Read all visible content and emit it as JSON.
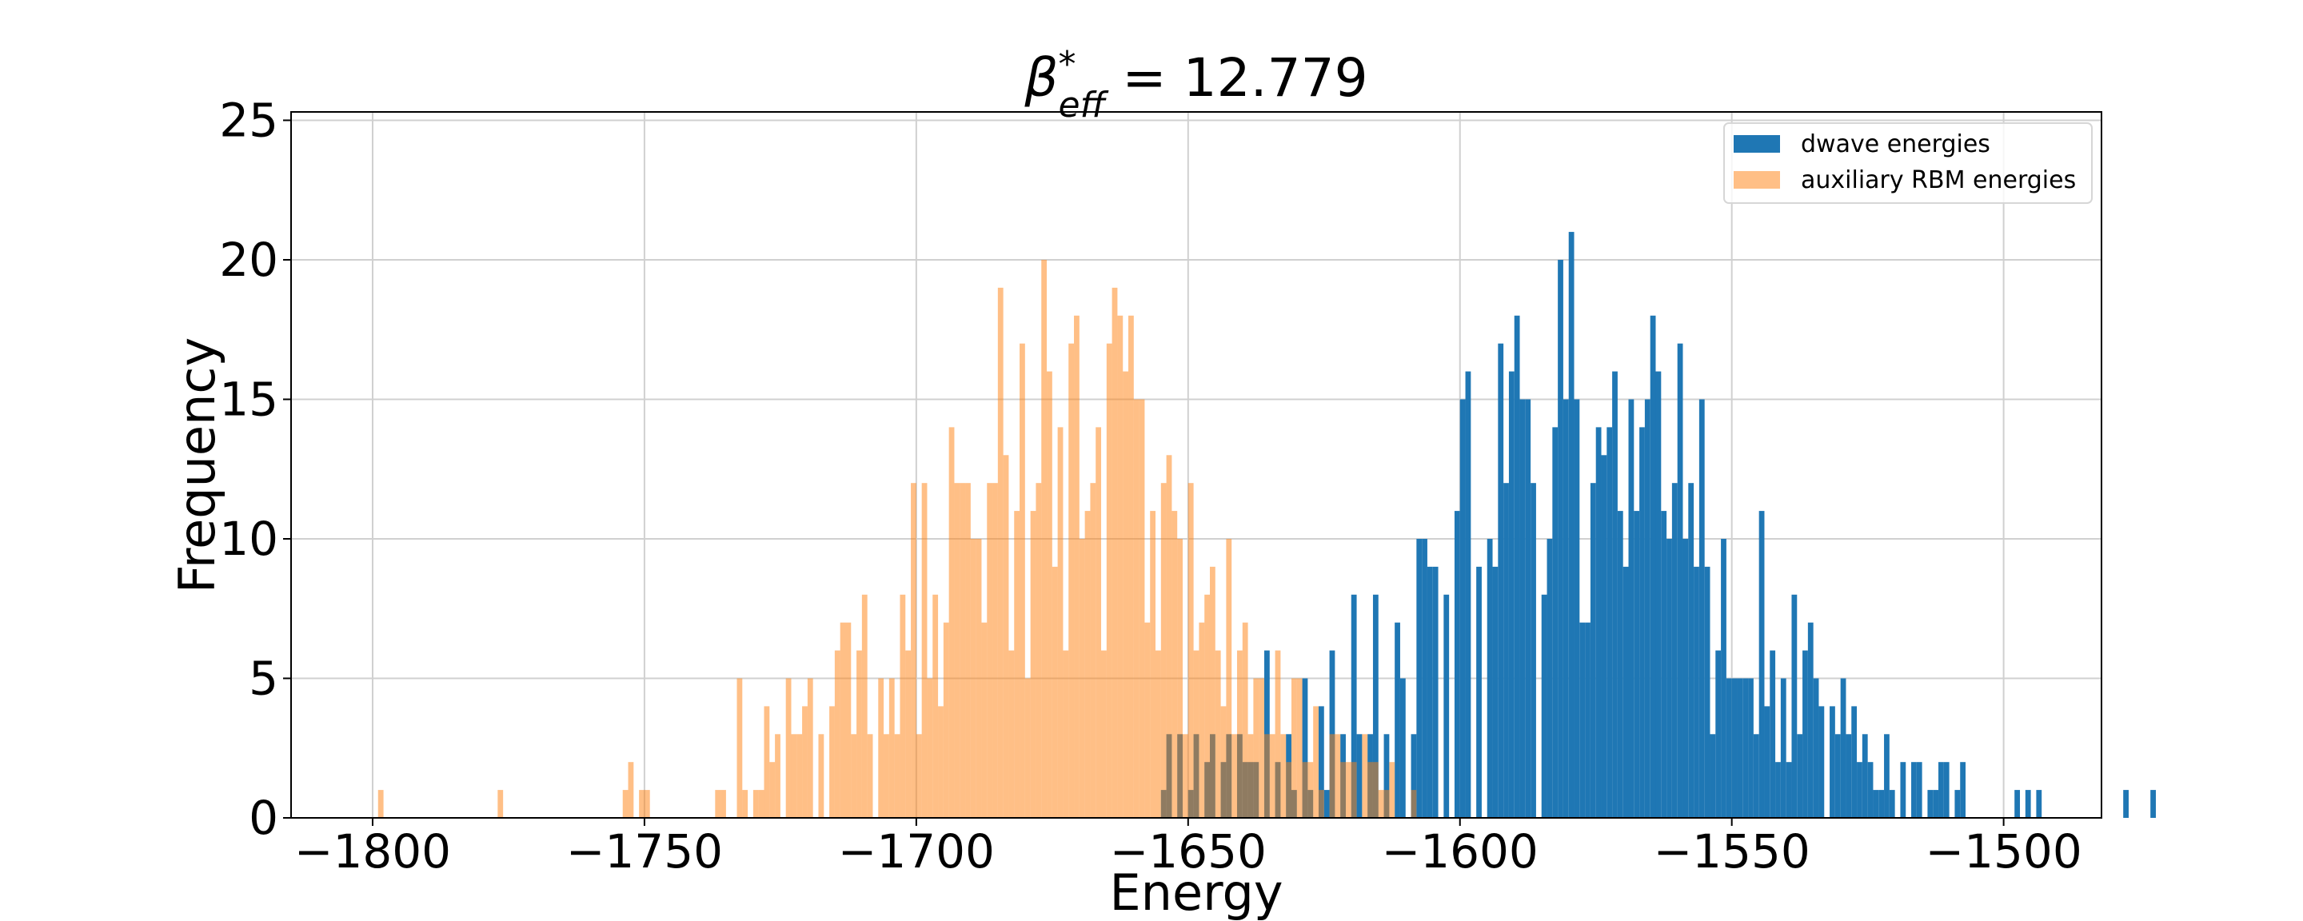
{
  "chart_data": {
    "type": "bar",
    "title": "β*eff = 12.779",
    "title_parts": {
      "symbol": "β",
      "sup": "*",
      "sub": "eff",
      "equals": " = 12.779"
    },
    "xlabel": "Energy",
    "ylabel": "Frequency",
    "xlim": [
      -1815,
      -1482
    ],
    "ylim": [
      0,
      25.3
    ],
    "xticks": [
      -1800,
      -1750,
      -1700,
      -1650,
      -1600,
      -1550,
      -1500
    ],
    "xtick_labels": [
      "−1800",
      "−1750",
      "−1700",
      "−1650",
      "−1600",
      "−1550",
      "−1500"
    ],
    "yticks": [
      0,
      5,
      10,
      15,
      20,
      25
    ],
    "ytick_labels": [
      "0",
      "5",
      "10",
      "15",
      "20",
      "25"
    ],
    "grid": true,
    "legend_position": "top-right",
    "bin_width": 1,
    "series": [
      {
        "name": "dwave energies",
        "color": "#1f77b4",
        "opacity": 1.0,
        "x_start": -1655,
        "values": [
          1,
          3,
          0,
          3,
          0,
          1,
          3,
          0,
          2,
          3,
          0,
          2,
          3,
          0,
          3,
          2,
          2,
          2,
          0,
          6,
          0,
          2,
          0,
          3,
          1,
          0,
          5,
          1,
          0,
          4,
          1,
          6,
          0,
          3,
          0,
          8,
          3,
          0,
          3,
          8,
          0,
          3,
          0,
          7,
          5,
          0,
          3,
          10,
          10,
          9,
          9,
          0,
          8,
          0,
          11,
          15,
          16,
          0,
          9,
          0,
          10,
          9,
          17,
          12,
          16,
          18,
          15,
          15,
          12,
          0,
          8,
          10,
          14,
          20,
          15,
          21,
          15,
          7,
          7,
          12,
          14,
          13,
          14,
          16,
          11,
          9,
          15,
          11,
          14,
          15,
          18,
          16,
          11,
          10,
          12,
          17,
          10,
          12,
          9,
          15,
          9,
          3,
          6,
          10,
          5,
          5,
          5,
          5,
          5,
          3,
          11,
          4,
          6,
          2,
          5,
          2,
          8,
          3,
          6,
          7,
          5,
          4,
          0,
          4,
          3,
          5,
          3,
          4,
          2,
          3,
          2,
          1,
          1,
          3,
          1,
          0,
          2,
          0,
          2,
          2,
          0,
          1,
          1,
          2,
          2,
          0,
          1,
          2,
          0,
          0,
          0,
          0,
          0,
          0,
          0,
          0,
          0,
          1,
          0,
          1,
          0,
          1,
          0,
          0,
          0,
          0,
          0,
          0,
          0,
          0,
          0,
          0,
          0,
          0,
          0,
          0,
          0,
          1,
          0,
          0,
          0,
          0,
          1
        ]
      },
      {
        "name": "auxiliary RBM energies",
        "color": "#ff7f0e",
        "opacity": 0.5,
        "x_start": -1799,
        "values": [
          1,
          0,
          0,
          0,
          0,
          0,
          0,
          0,
          0,
          0,
          0,
          0,
          0,
          0,
          0,
          0,
          0,
          0,
          0,
          0,
          0,
          0,
          1,
          0,
          0,
          0,
          0,
          0,
          0,
          0,
          0,
          0,
          0,
          0,
          0,
          0,
          0,
          0,
          0,
          0,
          0,
          0,
          0,
          0,
          0,
          1,
          2,
          0,
          1,
          1,
          0,
          0,
          0,
          0,
          0,
          0,
          0,
          0,
          0,
          0,
          0,
          0,
          1,
          1,
          0,
          0,
          5,
          1,
          0,
          1,
          1,
          4,
          2,
          3,
          0,
          5,
          3,
          3,
          4,
          5,
          0,
          3,
          0,
          4,
          6,
          7,
          7,
          3,
          6,
          8,
          3,
          0,
          5,
          3,
          5,
          3,
          8,
          6,
          12,
          3,
          12,
          5,
          8,
          4,
          7,
          14,
          12,
          12,
          12,
          10,
          10,
          7,
          12,
          12,
          19,
          13,
          6,
          11,
          17,
          5,
          11,
          12,
          20,
          16,
          9,
          14,
          6,
          17,
          18,
          10,
          11,
          12,
          14,
          6,
          17,
          19,
          18,
          16,
          18,
          15,
          15,
          7,
          11,
          6,
          12,
          13,
          11,
          10,
          3,
          12,
          6,
          7,
          8,
          9,
          6,
          4,
          10,
          3,
          6,
          7,
          3,
          5,
          5,
          3,
          3,
          6,
          3,
          2,
          5,
          5,
          2,
          2,
          4,
          1,
          0,
          3,
          3,
          2,
          2,
          2,
          0,
          3,
          2,
          2,
          1,
          1,
          2,
          0,
          0,
          0,
          1
        ]
      }
    ]
  }
}
